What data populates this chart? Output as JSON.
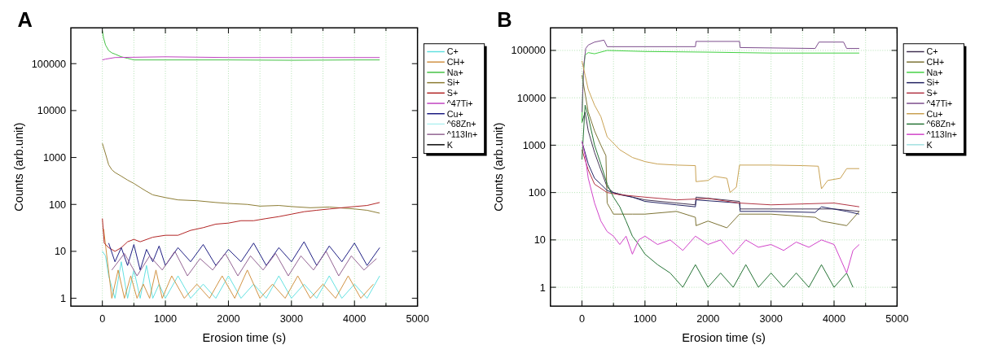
{
  "chart_data": [
    {
      "type": "line",
      "title": "A",
      "xlabel": "Erosion time (s)",
      "ylabel": "Counts (arb.unit)",
      "log": "y",
      "grid": "x",
      "legend": "right",
      "xlim": [
        -500,
        5000
      ],
      "ylim": [
        0.68,
        580000
      ],
      "xticks": [
        0,
        {
          "value": 500,
          "label": null
        },
        1000,
        {
          "value": 1500,
          "label": null
        },
        2000,
        {
          "value": 2500,
          "label": null
        },
        3000,
        {
          "value": 3500,
          "label": null
        },
        4000,
        {
          "value": 4500,
          "label": null
        },
        5000
      ],
      "yticks": [
        1,
        10,
        100,
        1000,
        10000,
        100000
      ],
      "series": [
        {
          "name": "C+",
          "color": "#60e0e0",
          "x": [
            0,
            50,
            100,
            200,
            300,
            400,
            500,
            600,
            700,
            800,
            900,
            1000,
            1200,
            1400,
            1600,
            1800,
            2000,
            2200,
            2400,
            2600,
            2800,
            3000,
            3200,
            3400,
            3600,
            3800,
            4000,
            4200,
            4400
          ],
          "values": [
            10,
            8,
            3,
            1,
            6,
            1,
            4,
            1,
            5,
            1,
            2,
            1,
            3,
            1,
            2,
            1,
            3,
            1,
            2,
            1,
            3,
            1,
            2,
            1,
            3,
            1,
            2,
            1,
            3
          ]
        },
        {
          "name": "CH+",
          "color": "#d09040",
          "x": [
            20,
            150,
            250,
            350,
            450,
            550,
            650,
            750,
            850,
            950,
            1100,
            1300,
            1500,
            1700,
            1900,
            2100,
            2300,
            2500,
            2700,
            2900,
            3100,
            3300,
            3500,
            3700,
            3900,
            4100,
            4300
          ],
          "values": [
            30,
            1,
            4,
            1,
            3,
            1,
            2,
            1,
            4,
            1,
            3,
            1,
            2,
            1,
            3,
            1,
            4,
            1,
            2,
            1,
            3,
            1,
            2,
            1,
            3,
            1,
            2
          ]
        },
        {
          "name": "Na+",
          "color": "#40c040",
          "x": [
            0,
            20,
            50,
            100,
            150,
            200,
            300,
            400,
            500,
            1000,
            2000,
            3000,
            4000,
            4400
          ],
          "values": [
            500000,
            350000,
            250000,
            190000,
            170000,
            160000,
            140000,
            130000,
            120000,
            120000,
            120000,
            118000,
            120000,
            120000
          ]
        },
        {
          "name": "Si+",
          "color": "#8a7a30",
          "x": [
            0,
            50,
            100,
            150,
            200,
            300,
            400,
            500,
            600,
            700,
            800,
            1000,
            1200,
            1500,
            1800,
            2000,
            2300,
            2500,
            2800,
            3000,
            3300,
            3600,
            4000,
            4200,
            4400
          ],
          "values": [
            2000,
            1200,
            700,
            550,
            480,
            400,
            330,
            280,
            230,
            190,
            160,
            140,
            125,
            120,
            110,
            105,
            100,
            92,
            95,
            90,
            85,
            88,
            80,
            75,
            65
          ]
        },
        {
          "name": "S+",
          "color": "#b02020",
          "x": [
            0,
            30,
            100,
            200,
            300,
            400,
            500,
            600,
            800,
            1000,
            1200,
            1400,
            1600,
            1800,
            2000,
            2200,
            2400,
            2600,
            2800,
            3000,
            3200,
            3400,
            3600,
            3800,
            4000,
            4200,
            4400
          ],
          "values": [
            50,
            15,
            12,
            10,
            12,
            16,
            18,
            16,
            20,
            22,
            22,
            28,
            32,
            38,
            40,
            45,
            45,
            50,
            55,
            62,
            70,
            75,
            80,
            85,
            90,
            95,
            110
          ]
        },
        {
          "name": "^47Ti+",
          "color": "#c040c0",
          "x": [
            0,
            50,
            200,
            1000,
            2000,
            3000,
            4400
          ],
          "values": [
            120000,
            125000,
            135000,
            140000,
            135000,
            135000,
            135000
          ]
        },
        {
          "name": "Cu+",
          "color": "#1a1a80",
          "x": [
            100,
            200,
            300,
            400,
            500,
            600,
            700,
            800,
            900,
            1000,
            1200,
            1400,
            1600,
            1800,
            2000,
            2200,
            2400,
            2600,
            2800,
            3000,
            3200,
            3400,
            3600,
            3800,
            4000,
            4200,
            4400
          ],
          "values": [
            15,
            6,
            12,
            5,
            14,
            4,
            11,
            6,
            13,
            5,
            12,
            6,
            14,
            5,
            11,
            6,
            15,
            5,
            12,
            6,
            16,
            5,
            13,
            6,
            15,
            5,
            12
          ]
        },
        {
          "name": "^68Zn+",
          "color": "#b0f0f0"
        },
        {
          "name": "^113In+",
          "color": "#906090",
          "x": [
            150,
            350,
            550,
            750,
            950,
            1150,
            1350,
            1550,
            1750,
            1950,
            2150,
            2350,
            2550,
            2750,
            2950,
            3150,
            3350,
            3550,
            3750,
            3950,
            4150,
            4350
          ],
          "values": [
            4,
            9,
            3,
            8,
            4,
            10,
            3,
            7,
            4,
            9,
            3,
            8,
            4,
            9,
            3,
            8,
            4,
            10,
            3,
            8,
            4,
            7
          ]
        },
        {
          "name": "K",
          "color": "#000000"
        }
      ]
    },
    {
      "type": "line",
      "title": "B",
      "xlabel": "Erosion time (s)",
      "ylabel": "Counts (arb.unit)",
      "log": "y",
      "grid": true,
      "legend": "right",
      "xlim": [
        -500,
        5000
      ],
      "ylim": [
        0.4,
        300000
      ],
      "xticks": [
        0,
        {
          "value": 500,
          "label": null
        },
        1000,
        {
          "value": 1500,
          "label": null
        },
        2000,
        {
          "value": 2500,
          "label": null
        },
        3000,
        {
          "value": 3500,
          "label": null
        },
        4000,
        {
          "value": 4500,
          "label": null
        },
        5000
      ],
      "yticks": [
        1,
        10,
        100,
        1000,
        10000,
        100000
      ],
      "series": [
        {
          "name": "C+",
          "color": "#403050",
          "x": [
            0,
            50,
            100,
            200,
            300,
            400,
            500,
            800,
            1000,
            1500,
            1800,
            1810,
            2500,
            2510,
            3000,
            4000,
            4400
          ],
          "values": [
            3000,
            5000,
            2000,
            700,
            300,
            130,
            100,
            80,
            70,
            60,
            55,
            80,
            65,
            45,
            45,
            45,
            40
          ]
        },
        {
          "name": "CH+",
          "color": "#7a7030",
          "x": [
            0,
            100,
            200,
            300,
            380,
            400,
            500,
            800,
            1000,
            1500,
            1800,
            1810,
            2000,
            2300,
            2500,
            3000,
            3700,
            3800,
            4200,
            4400
          ],
          "values": [
            30000,
            5000,
            2000,
            1000,
            600,
            60,
            35,
            35,
            35,
            40,
            30,
            20,
            25,
            18,
            35,
            35,
            30,
            25,
            20,
            40
          ]
        },
        {
          "name": "Na+",
          "color": "#40d040",
          "x": [
            0,
            20,
            50,
            100,
            200,
            400,
            1000,
            2000,
            3000,
            4400
          ],
          "values": [
            3000,
            30000,
            80000,
            90000,
            85000,
            100000,
            95000,
            92000,
            88000,
            88000
          ]
        },
        {
          "name": "Si+",
          "color": "#202060",
          "x": [
            0,
            100,
            200,
            300,
            400,
            600,
            800,
            1000,
            1500,
            1800,
            1810,
            2500,
            2510,
            3000,
            3700,
            3800,
            4200,
            4400
          ],
          "values": [
            1200,
            400,
            200,
            150,
            110,
            90,
            80,
            65,
            55,
            50,
            70,
            60,
            40,
            40,
            38,
            50,
            40,
            35
          ]
        },
        {
          "name": "S+",
          "color": "#b03040",
          "x": [
            0,
            100,
            200,
            400,
            600,
            1000,
            1500,
            2000,
            2500,
            3000,
            4000,
            4400
          ],
          "values": [
            800,
            300,
            150,
            100,
            90,
            80,
            70,
            75,
            60,
            55,
            60,
            50
          ]
        },
        {
          "name": "^47Ti+",
          "color": "#7a4a8a",
          "x": [
            0,
            30,
            60,
            100,
            200,
            350,
            400,
            1800,
            1810,
            2500,
            2510,
            3700,
            3760,
            4150,
            4200,
            4400
          ],
          "values": [
            5000,
            50000,
            110000,
            130000,
            150000,
            165000,
            120000,
            120000,
            155000,
            155000,
            115000,
            110000,
            150000,
            150000,
            110000,
            110000
          ]
        },
        {
          "name": "Cu+",
          "color": "#c8a050",
          "x": [
            0,
            50,
            100,
            200,
            300,
            400,
            500,
            600,
            800,
            1000,
            1200,
            1500,
            1800,
            1810,
            2000,
            2100,
            2300,
            2350,
            2450,
            2500,
            3000,
            3500,
            3750,
            3800,
            3900,
            4100,
            4200,
            4400
          ],
          "values": [
            60000,
            30000,
            15000,
            7000,
            4000,
            1500,
            1100,
            800,
            550,
            450,
            400,
            380,
            370,
            170,
            180,
            220,
            200,
            100,
            130,
            380,
            380,
            370,
            360,
            120,
            180,
            200,
            320,
            320
          ]
        },
        {
          "name": "^68Zn+",
          "color": "#207030",
          "x": [
            0,
            50,
            100,
            200,
            300,
            400,
            500,
            600,
            700,
            800,
            900,
            1000,
            1200,
            1400,
            1600,
            1800,
            2000,
            2200,
            2400,
            2600,
            2800,
            3000,
            3200,
            3400,
            3600,
            3800,
            4000,
            4200,
            4300
          ],
          "values": [
            500,
            7000,
            4000,
            1000,
            400,
            150,
            80,
            50,
            25,
            12,
            8,
            5,
            3,
            2,
            1,
            3,
            1,
            2,
            1,
            3,
            1,
            2,
            1,
            2,
            1,
            3,
            1,
            2,
            1
          ]
        },
        {
          "name": "^113In+",
          "color": "#d040c8",
          "x": [
            0,
            50,
            100,
            200,
            300,
            400,
            500,
            600,
            700,
            800,
            900,
            1000,
            1200,
            1400,
            1600,
            1800,
            2000,
            2200,
            2400,
            2600,
            2800,
            3000,
            3200,
            3400,
            3600,
            3800,
            4000,
            4200,
            4300,
            4400
          ],
          "values": [
            1200,
            600,
            200,
            60,
            25,
            15,
            12,
            8,
            12,
            5,
            10,
            12,
            8,
            10,
            6,
            12,
            8,
            10,
            5,
            10,
            7,
            8,
            6,
            9,
            7,
            10,
            8,
            2,
            6,
            8
          ]
        },
        {
          "name": "K",
          "color": "#a0e0e0"
        }
      ]
    }
  ]
}
